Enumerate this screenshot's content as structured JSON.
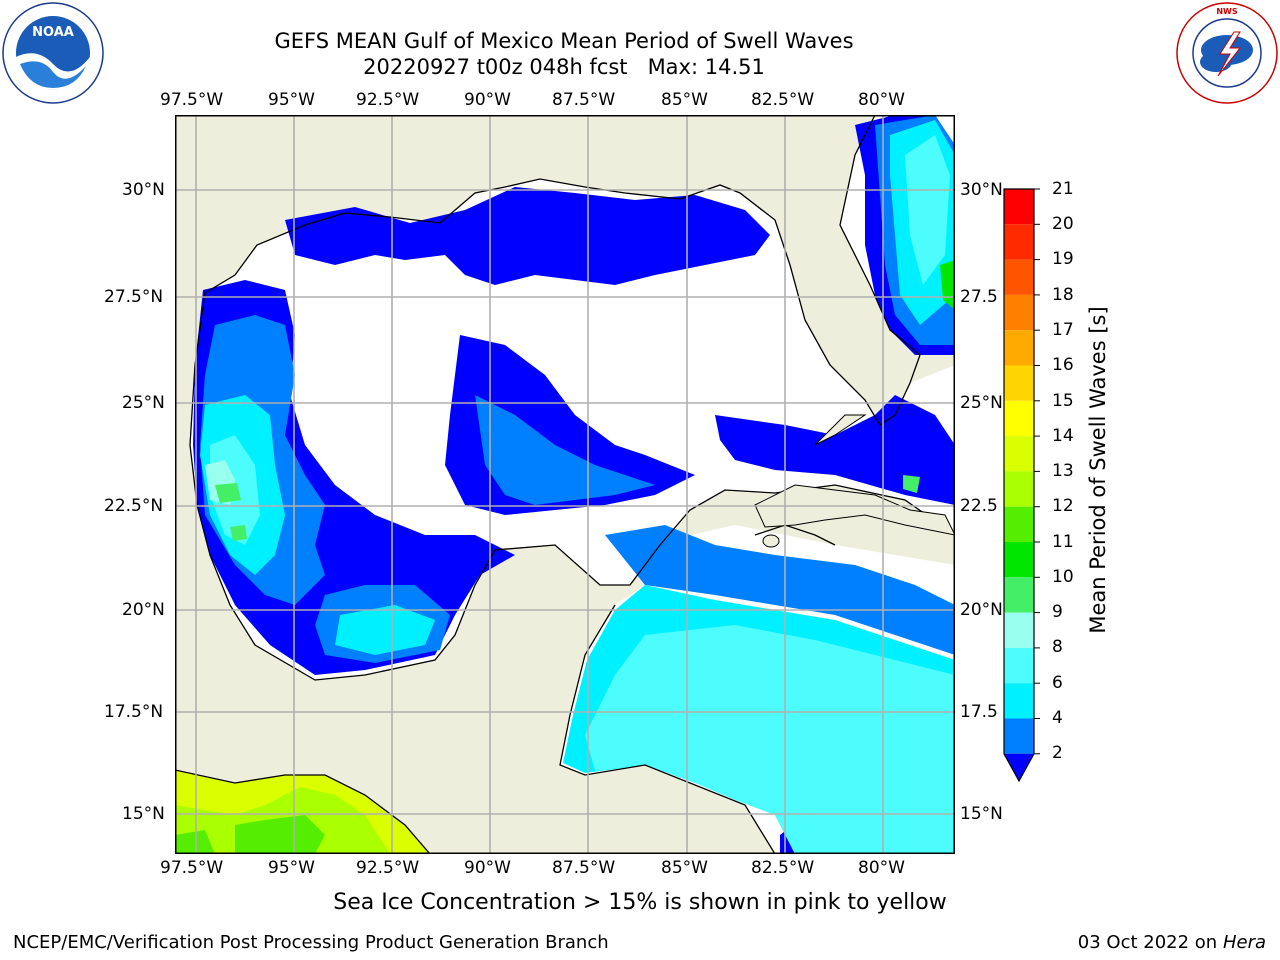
{
  "title": {
    "line1": "GEFS MEAN Gulf of Mexico Mean Period of Swell Waves",
    "line2": "20220927 t00z 048h fcst   Max: 14.51"
  },
  "logos": {
    "noaa_text": "NOAA",
    "noaa_ring": "NATIONAL OCEANIC AND ATMOSPHERIC ADMINISTRATION · U.S. DEPARTMENT OF COMMERCE",
    "nws_ring": "NATIONAL WEATHER SERVICE"
  },
  "map": {
    "lon_ticks": [
      "97.5°W",
      "95°W",
      "92.5°W",
      "90°W",
      "87.5°W",
      "85°W",
      "82.5°W",
      "80°W"
    ],
    "lat_ticks_left": [
      "30°N",
      "27.5°N",
      "25°N",
      "22.5°N",
      "20°N",
      "17.5°N",
      "15°N"
    ],
    "lat_ticks_right": [
      "30°N",
      "27.5",
      "25°N",
      "22.5",
      "20°N",
      "17.5",
      "15°N"
    ]
  },
  "colorbar": {
    "label": "Mean Period of Swell Waves [s]",
    "ticks": [
      "21",
      "20",
      "19",
      "18",
      "17",
      "16",
      "15",
      "14",
      "13",
      "12",
      "11",
      "10",
      "9",
      "8",
      "6",
      "4",
      "2"
    ],
    "colors": {
      "c20": "#ff0000",
      "c19": "#ff2a00",
      "c18": "#ff5500",
      "c17": "#ff8000",
      "c16": "#ffaa00",
      "c15": "#ffd500",
      "c14": "#ffff00",
      "c13": "#d9ff00",
      "c12": "#aaff00",
      "c11": "#55ee00",
      "c10": "#00e600",
      "c9": "#44ee66",
      "c8": "#99ffee",
      "c6": "#4dfcfc",
      "c4": "#00f0ff",
      "c2": "#0080ff",
      "under": "#0000ff"
    }
  },
  "note": "Sea Ice Concentration > 15% is shown in pink to yellow",
  "footer": {
    "left": "NCEP/EMC/Verification Post Processing Product Generation Branch",
    "date": "03 Oct 2022 on ",
    "host": "Hera"
  }
}
